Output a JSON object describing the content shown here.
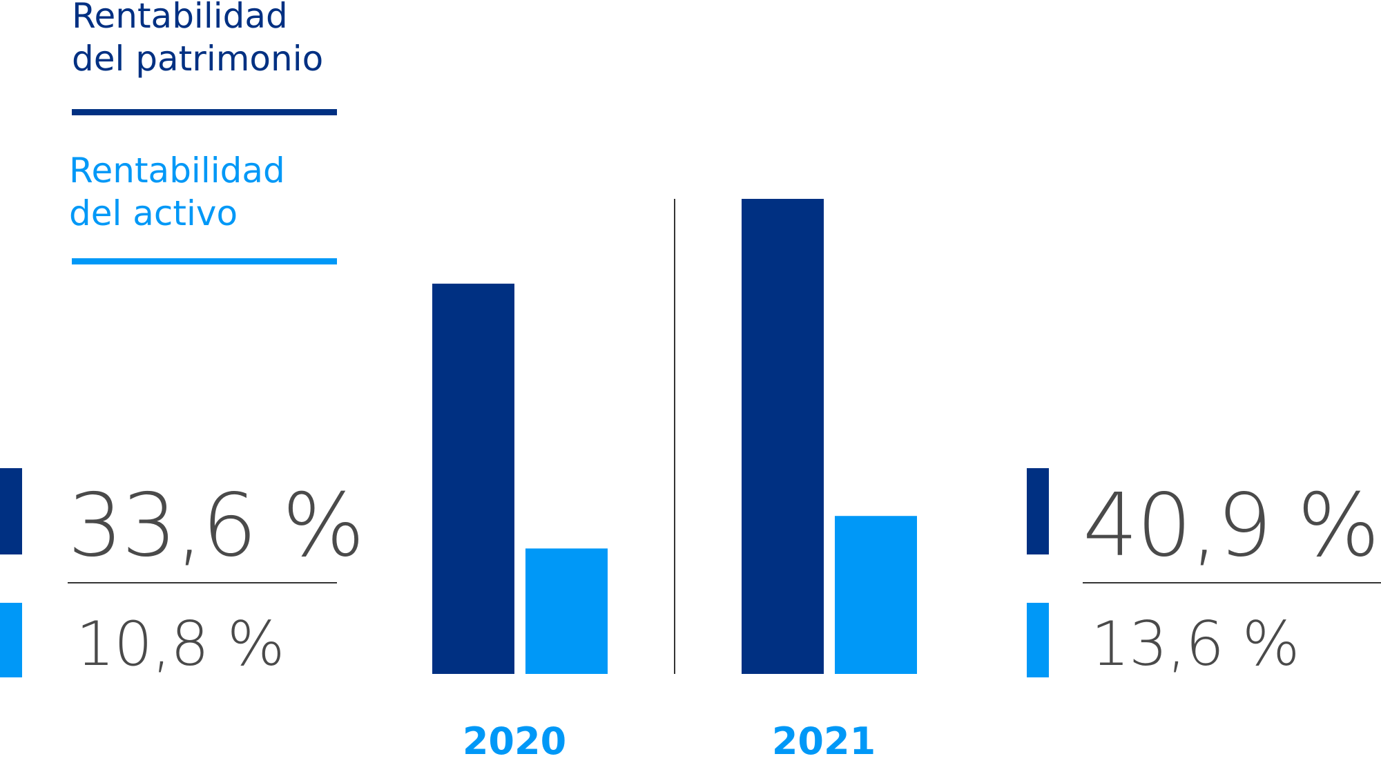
{
  "colors": {
    "patrimonio": "#003082",
    "activo": "#0098f7",
    "text_gray": "#4a4a4a",
    "divider": "#333333"
  },
  "legend": {
    "patrimonio_label": "Rentabilidad\ndel patrimonio",
    "activo_label": "Rentabilidad\ndel activo"
  },
  "summary": {
    "2020": {
      "patrimonio": "33,6 %",
      "activo": "10,8 %"
    },
    "2021": {
      "patrimonio": "40,9 %",
      "activo": "13,6 %"
    }
  },
  "chart_data": {
    "type": "bar",
    "title": "",
    "xlabel": "",
    "ylabel": "",
    "categories": [
      "2020",
      "2021"
    ],
    "series": [
      {
        "name": "Rentabilidad del patrimonio",
        "values": [
          33.6,
          40.9
        ],
        "color": "#003082"
      },
      {
        "name": "Rentabilidad del activo",
        "values": [
          10.8,
          13.6
        ],
        "color": "#0098f7"
      }
    ],
    "ylim": [
      0,
      40.9
    ],
    "grid": false,
    "legend": "top-left"
  }
}
